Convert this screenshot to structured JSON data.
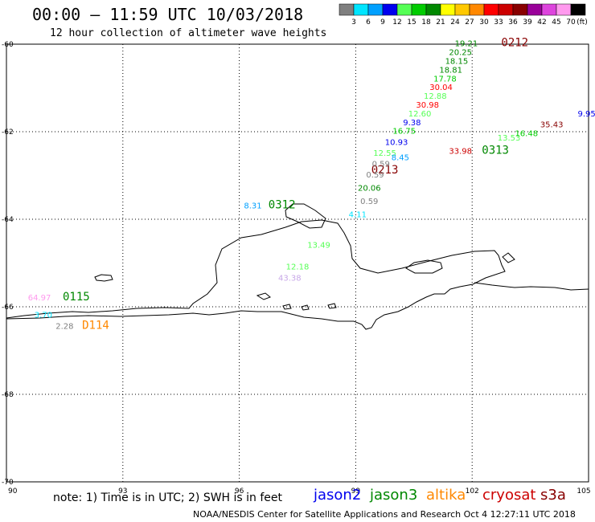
{
  "header": {
    "title": "00:00 – 11:59 UTC 10/03/2018",
    "subtitle": "12 hour collection of altimeter wave heights"
  },
  "colorbar": {
    "unit": "(ft)",
    "bins": [
      {
        "label": "3",
        "color": "#7f7f7f"
      },
      {
        "label": "6",
        "color": "#00e5ff"
      },
      {
        "label": "9",
        "color": "#00a0ff"
      },
      {
        "label": "12",
        "color": "#0000ee"
      },
      {
        "label": "15",
        "color": "#55ff55"
      },
      {
        "label": "18",
        "color": "#00cc00"
      },
      {
        "label": "21",
        "color": "#008800"
      },
      {
        "label": "24",
        "color": "#ffff00"
      },
      {
        "label": "27",
        "color": "#ffc800"
      },
      {
        "label": "30",
        "color": "#ff8800"
      },
      {
        "label": "33",
        "color": "#ff0000"
      },
      {
        "label": "36",
        "color": "#cc0000"
      },
      {
        "label": "39",
        "color": "#880000"
      },
      {
        "label": "42",
        "color": "#990099"
      },
      {
        "label": "45",
        "color": "#dd44dd"
      },
      {
        "label": "70",
        "color": "#ff99ee"
      },
      {
        "label": "",
        "color": "#000000"
      }
    ]
  },
  "map": {
    "lon_range": [
      90,
      105
    ],
    "lat_range": [
      -70,
      -60
    ],
    "lon_ticks": [
      "90",
      "93",
      "96",
      "99",
      "102",
      "105"
    ],
    "lat_ticks": [
      "-60",
      "-62",
      "-64",
      "-66",
      "-68",
      "-70"
    ]
  },
  "pass_labels": [
    {
      "text": "0212",
      "lon": 102.75,
      "lat": -60.05,
      "color": "#880000"
    },
    {
      "text": "0213",
      "lon": 99.4,
      "lat": -62.95,
      "color": "#880000"
    },
    {
      "text": "0313",
      "lon": 102.25,
      "lat": -62.5,
      "color": "#008800"
    },
    {
      "text": "0312",
      "lon": 96.75,
      "lat": -63.75,
      "color": "#008800"
    },
    {
      "text": "0115",
      "lon": 91.45,
      "lat": -65.85,
      "color": "#008800"
    },
    {
      "text": "D114",
      "lon": 91.95,
      "lat": -66.5,
      "color": "#ff8800"
    }
  ],
  "wave_heights": [
    {
      "text": "19.21",
      "lon": 101.85,
      "lat": -60.05,
      "color": "#008800"
    },
    {
      "text": "20.25",
      "lon": 101.7,
      "lat": -60.25,
      "color": "#008800"
    },
    {
      "text": "18.15",
      "lon": 101.6,
      "lat": -60.45,
      "color": "#008800"
    },
    {
      "text": "18.81",
      "lon": 101.45,
      "lat": -60.65,
      "color": "#008800"
    },
    {
      "text": "17.78",
      "lon": 101.3,
      "lat": -60.85,
      "color": "#00cc00"
    },
    {
      "text": "30.04",
      "lon": 101.2,
      "lat": -61.05,
      "color": "#ff0000"
    },
    {
      "text": "12.88",
      "lon": 101.05,
      "lat": -61.25,
      "color": "#55ff55"
    },
    {
      "text": "30.98",
      "lon": 100.85,
      "lat": -61.45,
      "color": "#ff0000"
    },
    {
      "text": "12.60",
      "lon": 100.65,
      "lat": -61.65,
      "color": "#55ff55"
    },
    {
      "text": "9.38",
      "lon": 100.45,
      "lat": -61.85,
      "color": "#0000ee"
    },
    {
      "text": "16.75",
      "lon": 100.25,
      "lat": -62.05,
      "color": "#00cc00"
    },
    {
      "text": "10.93",
      "lon": 100.05,
      "lat": -62.3,
      "color": "#0000ee"
    },
    {
      "text": "12.55",
      "lon": 99.75,
      "lat": -62.55,
      "color": "#55ff55"
    },
    {
      "text": "8.45",
      "lon": 100.15,
      "lat": -62.65,
      "color": "#00a0ff"
    },
    {
      "text": "0.59",
      "lon": 99.65,
      "lat": -62.8,
      "color": "#7f7f7f"
    },
    {
      "text": "0.59",
      "lon": 99.5,
      "lat": -63.05,
      "color": "#7f7f7f"
    },
    {
      "text": "20.06",
      "lon": 99.35,
      "lat": -63.35,
      "color": "#008800"
    },
    {
      "text": "0.59",
      "lon": 99.35,
      "lat": -63.65,
      "color": "#7f7f7f"
    },
    {
      "text": "4.11",
      "lon": 99.05,
      "lat": -63.95,
      "color": "#00e5ff"
    },
    {
      "text": "13.49",
      "lon": 98.05,
      "lat": -64.65,
      "color": "#55ff55"
    },
    {
      "text": "12.18",
      "lon": 97.5,
      "lat": -65.15,
      "color": "#55ff55"
    },
    {
      "text": "43.38",
      "lon": 97.3,
      "lat": -65.4,
      "color": "#c8a8e8"
    },
    {
      "text": "8.31",
      "lon": 96.35,
      "lat": -63.75,
      "color": "#00a0ff"
    },
    {
      "text": "33.98",
      "lon": 101.7,
      "lat": -62.5,
      "color": "#cc0000"
    },
    {
      "text": "13.53",
      "lon": 102.95,
      "lat": -62.2,
      "color": "#55ff55"
    },
    {
      "text": "16.48",
      "lon": 103.4,
      "lat": -62.1,
      "color": "#00cc00"
    },
    {
      "text": "35.43",
      "lon": 104.05,
      "lat": -61.9,
      "color": "#880000"
    },
    {
      "text": "9.95",
      "lon": 104.95,
      "lat": -61.65,
      "color": "#0000ee"
    },
    {
      "text": "64.97",
      "lon": 90.85,
      "lat": -65.85,
      "color": "#ff99ee"
    },
    {
      "text": "3.70",
      "lon": 90.95,
      "lat": -66.25,
      "color": "#00e5ff"
    },
    {
      "text": "2.28",
      "lon": 91.5,
      "lat": -66.5,
      "color": "#7f7f7f"
    }
  ],
  "footer": {
    "note": "note:  1) Time is in UTC;  2) SWH is in feet",
    "credit": "NOAA/NESDIS Center for Satellite Applications and Research    Oct  4 12:27:11 UTC 2018"
  },
  "satellites": [
    {
      "name": "jason2",
      "color": "#0000ee"
    },
    {
      "name": "jason3",
      "color": "#008800"
    },
    {
      "name": "altika",
      "color": "#ff8800"
    },
    {
      "name": "cryosat",
      "color": "#cc0000"
    },
    {
      "name": "s3a",
      "color": "#880000"
    }
  ]
}
